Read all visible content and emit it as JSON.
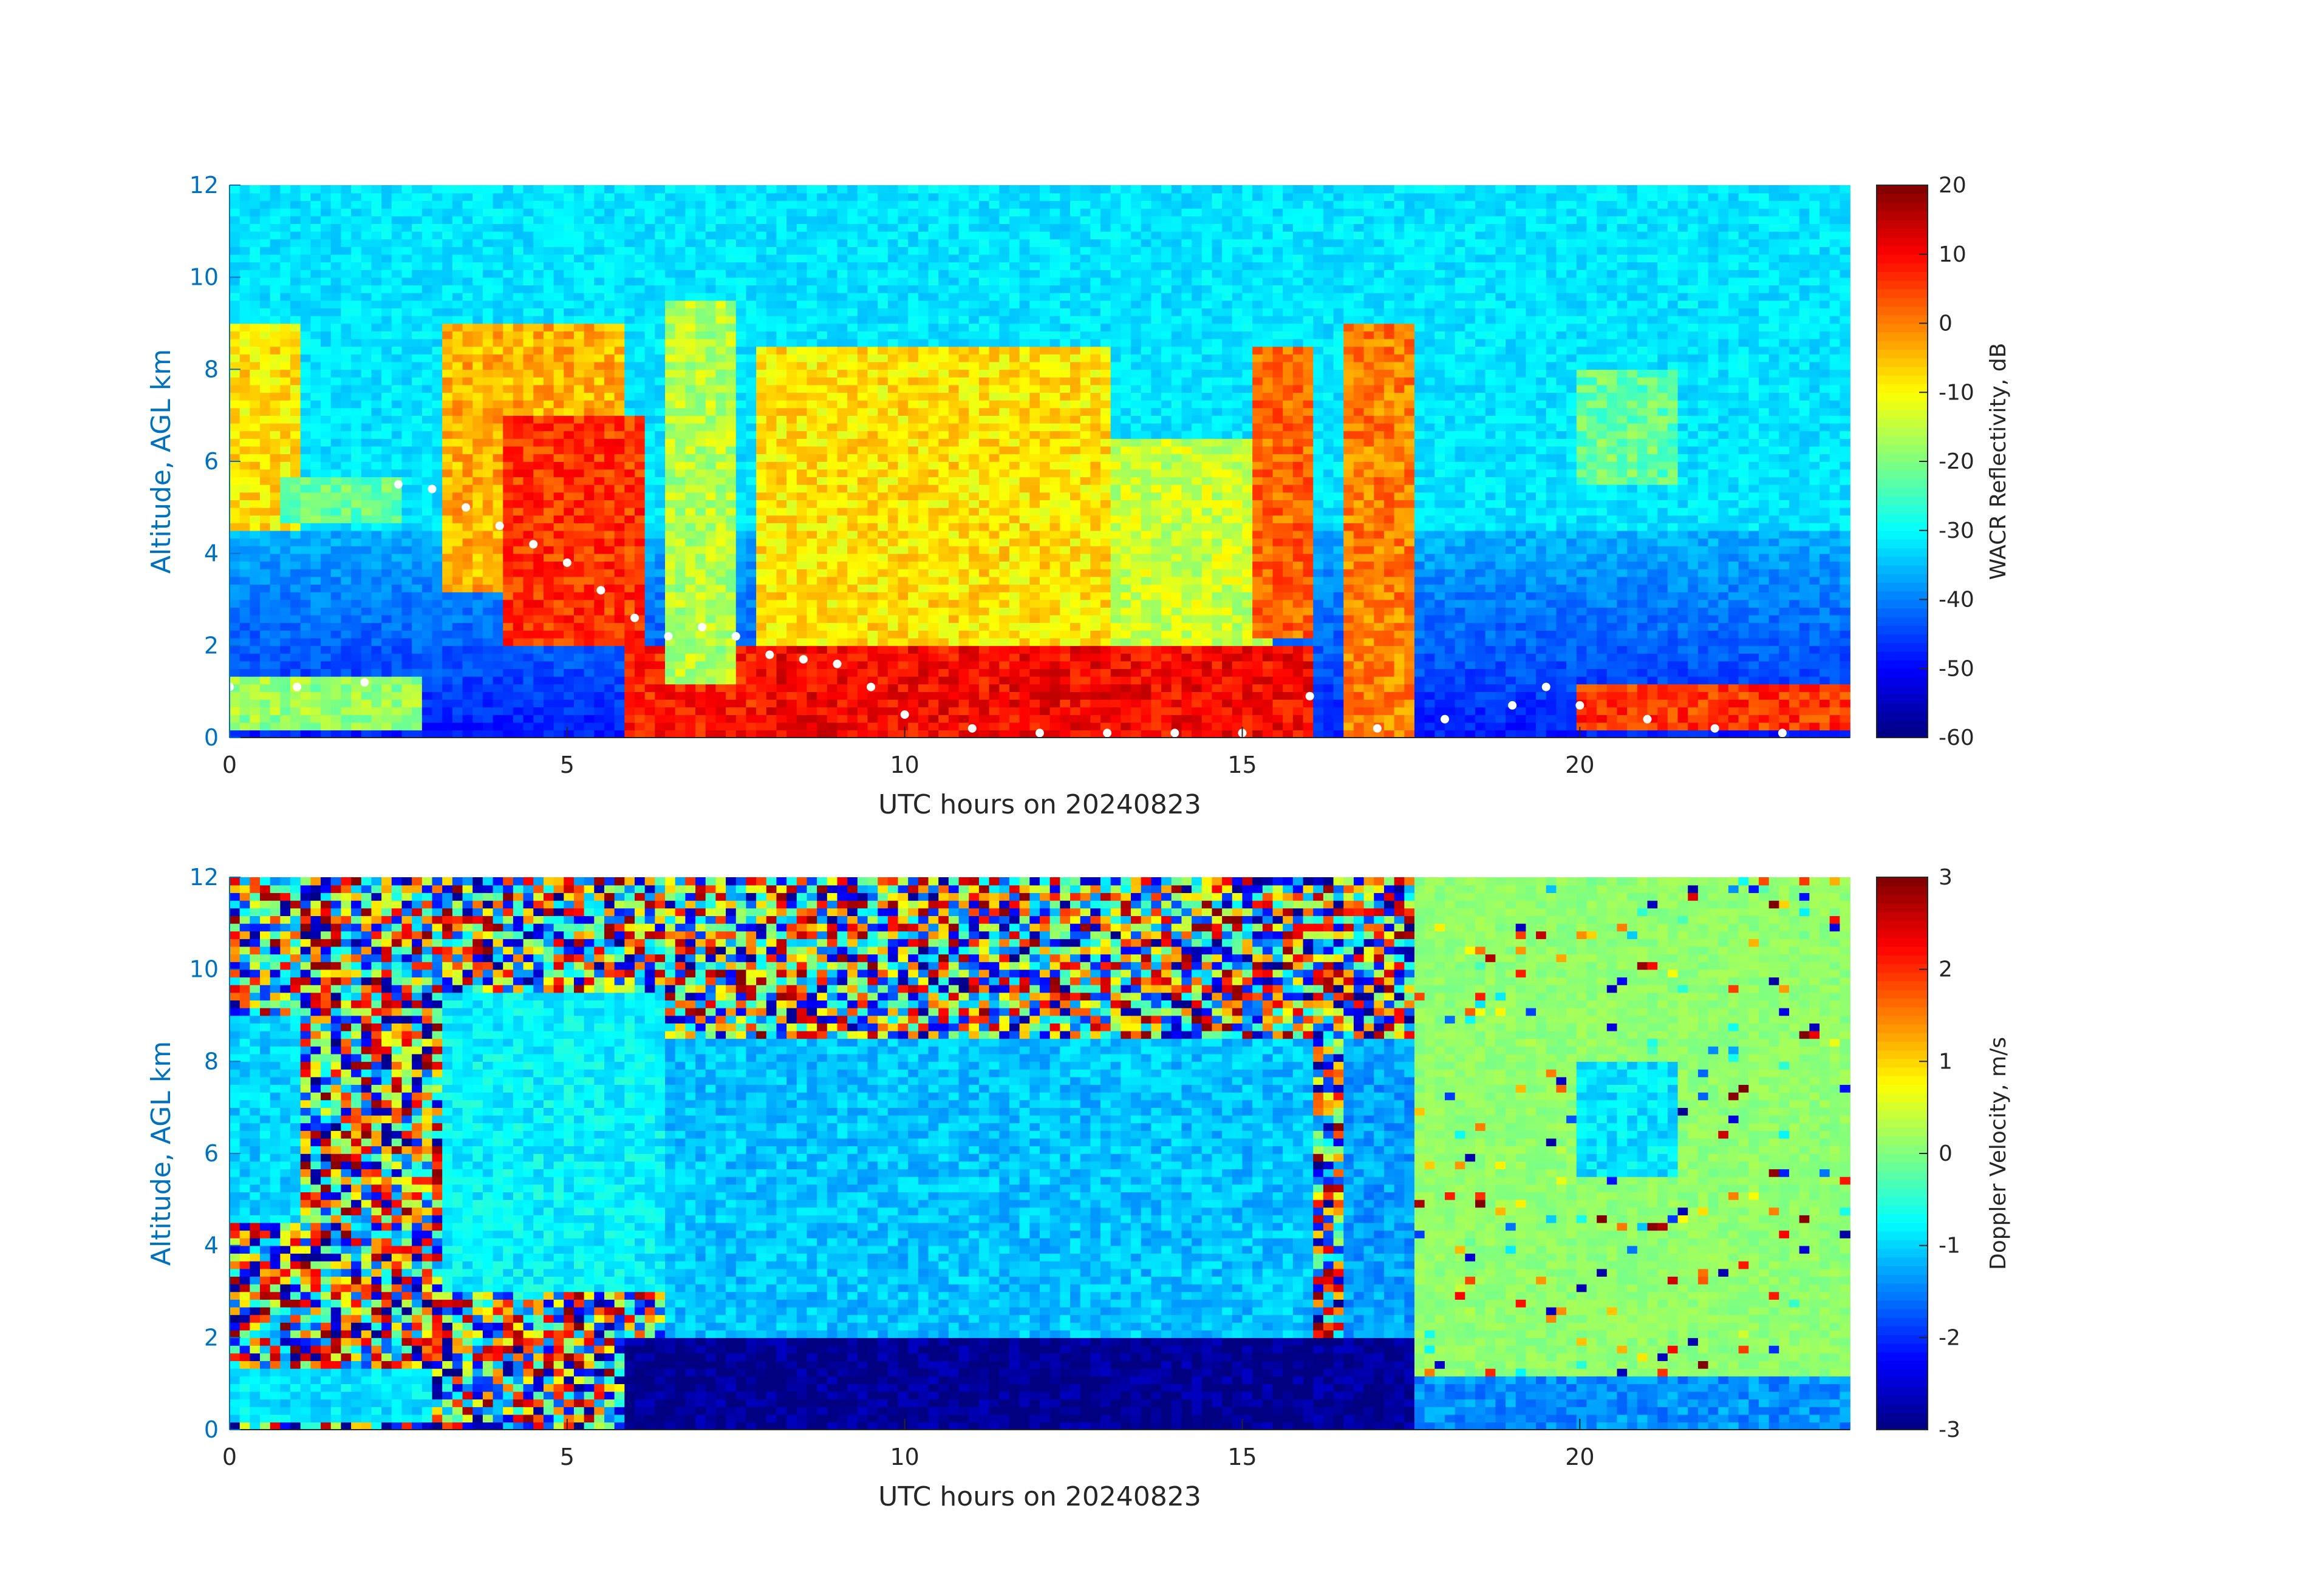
{
  "chart_data": [
    {
      "type": "heatmap",
      "name": "reflectivity",
      "xlabel": "UTC hours on 20240823",
      "ylabel": "Altitude, AGL km",
      "xlim": [
        0,
        24
      ],
      "ylim": [
        0,
        12
      ],
      "xticks": [
        0,
        5,
        10,
        15,
        20
      ],
      "yticks": [
        0,
        2,
        4,
        6,
        8,
        10,
        12
      ],
      "colorbar": {
        "label": "WACR Reflectivity, dB",
        "range": [
          -60,
          20
        ],
        "ticks": [
          -60,
          -50,
          -40,
          -30,
          -20,
          -10,
          0,
          10,
          20
        ],
        "colormap": "jet"
      },
      "background_value": -32,
      "cloud_layers": [
        {
          "x0": 0.0,
          "x1": 1.0,
          "ybot": 4.5,
          "ytop": 9.0,
          "value": -8
        },
        {
          "x0": 0.8,
          "x1": 2.6,
          "ybot": 4.6,
          "ytop": 5.6,
          "value": -22
        },
        {
          "x0": 0.0,
          "x1": 2.8,
          "ybot": 0.2,
          "ytop": 1.4,
          "value": -18
        },
        {
          "x0": 3.1,
          "x1": 5.8,
          "ybot": 3.2,
          "ytop": 9.0,
          "value": -4
        },
        {
          "x0": 4.0,
          "x1": 6.2,
          "ybot": 2.0,
          "ytop": 7.0,
          "value": 6
        },
        {
          "x0": 5.8,
          "x1": 7.8,
          "ybot": 0.0,
          "ytop": 2.0,
          "value": 8
        },
        {
          "x0": 6.5,
          "x1": 7.5,
          "ybot": 1.2,
          "ytop": 9.5,
          "value": -16
        },
        {
          "x0": 7.8,
          "x1": 16.0,
          "ybot": 0.0,
          "ytop": 2.0,
          "value": 10
        },
        {
          "x0": 7.8,
          "x1": 13.0,
          "ybot": 2.0,
          "ytop": 8.5,
          "value": -8
        },
        {
          "x0": 13.0,
          "x1": 15.5,
          "ybot": 2.0,
          "ytop": 6.5,
          "value": -14
        },
        {
          "x0": 15.2,
          "x1": 16.0,
          "ybot": 2.2,
          "ytop": 8.5,
          "value": 2
        },
        {
          "x0": 16.5,
          "x1": 17.5,
          "ybot": 0.0,
          "ytop": 9.0,
          "value": 0
        },
        {
          "x0": 20.0,
          "x1": 24.0,
          "ybot": 0.1,
          "ytop": 1.2,
          "value": 6
        },
        {
          "x0": 20.0,
          "x1": 21.5,
          "ybot": 5.5,
          "ytop": 8.0,
          "value": -22
        }
      ],
      "low_echo_regions": [
        {
          "x0": 0.0,
          "x1": 24.0,
          "ybot": 0.0,
          "ytop": 4.5,
          "value": -48
        }
      ],
      "cloud_base_points": [
        [
          0.0,
          1.1
        ],
        [
          1.0,
          1.1
        ],
        [
          2.0,
          1.2
        ],
        [
          2.5,
          5.5
        ],
        [
          3.0,
          5.4
        ],
        [
          3.5,
          5.0
        ],
        [
          4.0,
          4.6
        ],
        [
          4.5,
          4.2
        ],
        [
          5.0,
          3.8
        ],
        [
          5.5,
          3.2
        ],
        [
          6.0,
          2.6
        ],
        [
          6.5,
          2.2
        ],
        [
          7.0,
          2.4
        ],
        [
          7.5,
          2.2
        ],
        [
          8.0,
          1.8
        ],
        [
          8.5,
          1.7
        ],
        [
          9.0,
          1.6
        ],
        [
          9.5,
          1.1
        ],
        [
          10.0,
          0.5
        ],
        [
          11.0,
          0.2
        ],
        [
          12.0,
          0.1
        ],
        [
          13.0,
          0.1
        ],
        [
          14.0,
          0.1
        ],
        [
          15.0,
          0.1
        ],
        [
          16.0,
          0.9
        ],
        [
          17.0,
          0.2
        ],
        [
          18.0,
          0.4
        ],
        [
          19.0,
          0.7
        ],
        [
          19.5,
          1.1
        ],
        [
          20.0,
          0.7
        ],
        [
          21.0,
          0.4
        ],
        [
          22.0,
          0.2
        ],
        [
          23.0,
          0.1
        ]
      ]
    },
    {
      "type": "heatmap",
      "name": "doppler",
      "xlabel": "UTC hours on 20240823",
      "ylabel": "Altitude, AGL km",
      "xlim": [
        0,
        24
      ],
      "ylim": [
        0,
        12
      ],
      "xticks": [
        0,
        5,
        10,
        15,
        20
      ],
      "yticks": [
        0,
        2,
        4,
        6,
        8,
        10,
        12
      ],
      "colorbar": {
        "label": "Doppler Velocity, m/s",
        "range": [
          -3,
          3
        ],
        "ticks": [
          -3,
          -2,
          -1,
          0,
          1,
          2,
          3
        ],
        "colormap": "jet"
      },
      "noise_region_until": 17.5,
      "clear_value": 0.1,
      "cloud_layers": [
        {
          "x0": 0.0,
          "x1": 1.0,
          "ybot": 4.5,
          "ytop": 9.0,
          "value": -1.0
        },
        {
          "x0": 0.0,
          "x1": 3.0,
          "ybot": 0.2,
          "ytop": 1.4,
          "value": -0.9
        },
        {
          "x0": 3.1,
          "x1": 6.5,
          "ybot": 3.0,
          "ytop": 9.5,
          "value": -0.8
        },
        {
          "x0": 5.8,
          "x1": 17.5,
          "ybot": 0.0,
          "ytop": 2.0,
          "value": -2.9
        },
        {
          "x0": 6.5,
          "x1": 16.0,
          "ybot": 2.0,
          "ytop": 8.5,
          "value": -1.1
        },
        {
          "x0": 16.5,
          "x1": 17.5,
          "ybot": 2.0,
          "ytop": 8.5,
          "value": -1.3
        },
        {
          "x0": 17.5,
          "x1": 24.0,
          "ybot": 0.0,
          "ytop": 1.2,
          "value": -1.4
        },
        {
          "x0": 20.0,
          "x1": 21.5,
          "ybot": 5.5,
          "ytop": 8.0,
          "value": -0.9
        }
      ]
    }
  ]
}
